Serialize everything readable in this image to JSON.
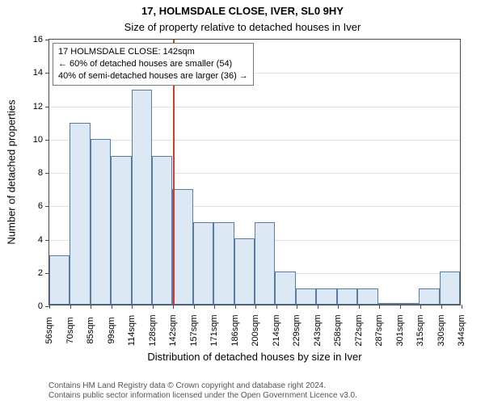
{
  "chart": {
    "type": "histogram",
    "title_main": "17, HOLMSDALE CLOSE, IVER, SL0 9HY",
    "title_sub": "Size of property relative to detached houses in Iver",
    "title_fontsize": 13,
    "ylabel": "Number of detached properties",
    "xlabel": "Distribution of detached houses by size in Iver",
    "label_fontsize": 13,
    "tick_fontsize": 11,
    "ylim": [
      0,
      16
    ],
    "ytick_step": 2,
    "yticks": [
      0,
      2,
      4,
      6,
      8,
      10,
      12,
      14,
      16
    ],
    "xticks": [
      "56sqm",
      "70sqm",
      "85sqm",
      "99sqm",
      "114sqm",
      "128sqm",
      "142sqm",
      "157sqm",
      "171sqm",
      "186sqm",
      "200sqm",
      "214sqm",
      "229sqm",
      "243sqm",
      "258sqm",
      "272sqm",
      "287sqm",
      "301sqm",
      "315sqm",
      "330sqm",
      "344sqm"
    ],
    "values": [
      3,
      11,
      10,
      9,
      13,
      9,
      7,
      5,
      5,
      4,
      5,
      2,
      1,
      1,
      1,
      1,
      0,
      0,
      1,
      2
    ],
    "bar_fill": "#dce8f3",
    "bar_border": "#5a7ca3",
    "background_color": "#ffffff",
    "grid_color": "#e0e0e0",
    "axis_color": "#4a4a4a",
    "marker_index": 6,
    "marker_color": "#d43a2a",
    "annotation": {
      "line1": "17 HOLMSDALE CLOSE: 142sqm",
      "line2": "← 60% of detached houses are smaller (54)",
      "line3": "40% of semi-detached houses are larger (36) →",
      "border_color": "#7a7a7a",
      "bg_color": "#ffffff",
      "fontsize": 11
    },
    "footer": {
      "line1": "Contains HM Land Registry data © Crown copyright and database right 2024.",
      "line2": "Contains public sector information licensed under the Open Government Licence v3.0."
    }
  }
}
